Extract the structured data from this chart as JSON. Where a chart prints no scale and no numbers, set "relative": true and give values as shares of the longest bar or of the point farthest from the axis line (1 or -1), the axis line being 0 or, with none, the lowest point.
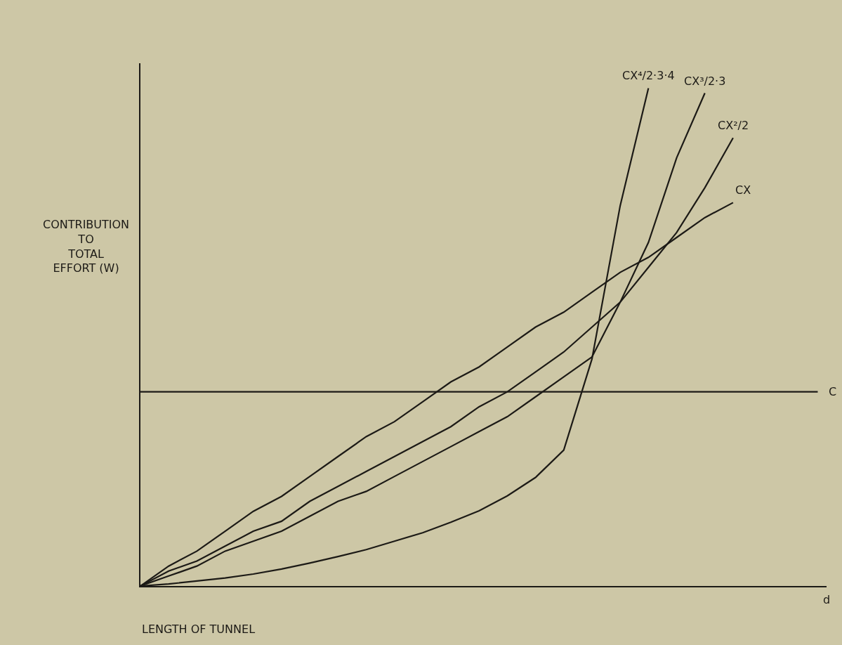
{
  "chart_data": {
    "type": "line",
    "relative": true,
    "xlabel": "LENGTH OF TUNNEL",
    "ylabel": "CONTRIBUTION\nTO\nTOTAL\nEFFORT (W)",
    "annotations": [
      "d"
    ],
    "categories": [
      null,
      null,
      null,
      null,
      null,
      null,
      null,
      null,
      null,
      null,
      null,
      null,
      null,
      null,
      null,
      null,
      null,
      null,
      null,
      null,
      null,
      null,
      null,
      null,
      null
    ],
    "series": [
      {
        "name": "C",
        "color": "#1c1a16",
        "values": [
          0.39,
          0.39,
          0.39,
          0.39,
          0.39,
          0.39,
          0.39,
          0.39,
          0.39,
          0.39,
          0.39,
          0.39,
          0.39,
          0.39,
          0.39,
          0.39,
          0.39,
          0.39,
          0.39,
          0.39,
          0.39,
          0.39,
          0.39,
          0.39,
          0.39
        ]
      },
      {
        "name": "CX",
        "color": "#1c1a16",
        "values": [
          0,
          0.04,
          0.07,
          0.11,
          0.15,
          0.18,
          0.22,
          0.26,
          0.3,
          0.33,
          0.37,
          0.41,
          0.44,
          0.48,
          0.52,
          0.55,
          0.59,
          0.63,
          0.66,
          0.7,
          0.74,
          0.77,
          null,
          null,
          null
        ]
      },
      {
        "name": "CX²/2",
        "color": "#1c1a16",
        "values": [
          0,
          0.03,
          0.05,
          0.08,
          0.11,
          0.13,
          0.17,
          0.2,
          0.23,
          0.26,
          0.29,
          0.32,
          0.36,
          0.39,
          0.43,
          0.47,
          0.52,
          0.57,
          0.64,
          0.71,
          0.8,
          0.9,
          null,
          null,
          null
        ]
      },
      {
        "name": "CX³/2·3",
        "color": "#1c1a16",
        "values": [
          0,
          0.02,
          0.04,
          0.07,
          0.09,
          0.11,
          0.14,
          0.17,
          0.19,
          0.22,
          0.25,
          0.28,
          0.31,
          0.34,
          0.38,
          0.42,
          0.46,
          0.57,
          0.69,
          0.86,
          0.99,
          null,
          null,
          null,
          null
        ]
      },
      {
        "name": "CX⁴/2·3·4",
        "color": "#1c1a16",
        "values": [
          0,
          0.004,
          0.01,
          0.016,
          0.024,
          0.034,
          0.046,
          0.059,
          0.073,
          0.09,
          0.107,
          0.128,
          0.151,
          0.181,
          0.218,
          0.273,
          0.456,
          0.764,
          1,
          null,
          null,
          null,
          null,
          null,
          null
        ]
      }
    ],
    "legend": false,
    "grid": false,
    "marker": "none",
    "line_style": "solid"
  }
}
